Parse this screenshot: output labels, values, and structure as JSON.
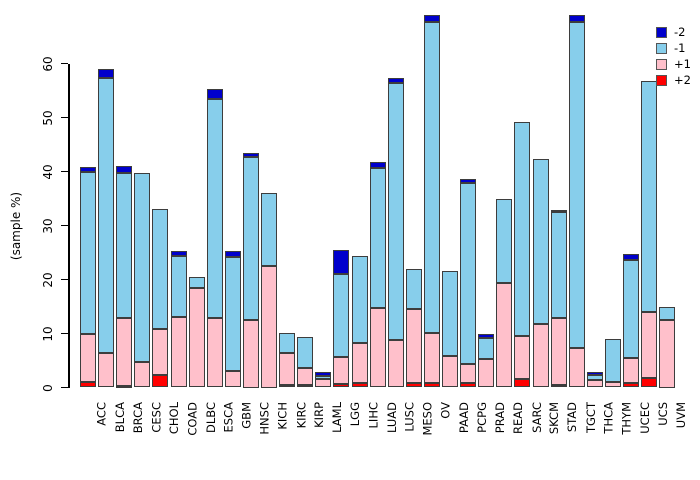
{
  "y_axis": {
    "title": "(sample %)",
    "ticks": [
      0,
      10,
      20,
      30,
      40,
      50,
      60
    ]
  },
  "legend": {
    "items": [
      {
        "label": "-2",
        "color": "#0000CC"
      },
      {
        "label": "-1",
        "color": "#87CEEB"
      },
      {
        "label": "+1",
        "color": "#FFC0CB"
      },
      {
        "label": "+2",
        "color": "#FF0000"
      }
    ]
  },
  "colors": {
    "minus2": "#0000CC",
    "minus1": "#87CEEB",
    "plus1": "#FFC0CB",
    "plus2": "#FF0000",
    "bar_border": "#3d3d3d",
    "axis": "#000000",
    "background": "#ffffff"
  },
  "chart_data": {
    "type": "bar",
    "stacked": true,
    "title": "",
    "xlabel": "",
    "ylabel": "(sample %)",
    "ylim": [
      0,
      70
    ],
    "grid": false,
    "legend_position": "top-right",
    "stack_order_bottom_to_top": [
      "+2",
      "+1",
      "-1",
      "-2"
    ],
    "categories": [
      "ACC",
      "BLCA",
      "BRCA",
      "CESC",
      "CHOL",
      "COAD",
      "DLBC",
      "ESCA",
      "GBM",
      "HNSC",
      "KICH",
      "KIRC",
      "KIRP",
      "LAML",
      "LGG",
      "LIHC",
      "LUAD",
      "LUSC",
      "MESO",
      "OV",
      "PAAD",
      "PCPG",
      "PRAD",
      "READ",
      "SARC",
      "SKCM",
      "STAD",
      "TGCT",
      "THCA",
      "THYM",
      "UCEC",
      "UCS",
      "UVM"
    ],
    "series": [
      {
        "name": "+2",
        "color": "#FF0000",
        "values": [
          1.1,
          0,
          0.3,
          0,
          2.4,
          0,
          0,
          0,
          0,
          0,
          0,
          0.5,
          0.4,
          0,
          0.6,
          0.8,
          0,
          0,
          0.8,
          0.9,
          0,
          0.9,
          0,
          0,
          1.5,
          0,
          0.5,
          0,
          0,
          0,
          0.9,
          1.8,
          0
        ]
      },
      {
        "name": "+1",
        "color": "#FFC0CB",
        "values": [
          8.8,
          6.3,
          12.6,
          4.8,
          8.4,
          13.1,
          18.5,
          12.8,
          3.1,
          12.5,
          22.5,
          5.8,
          3.3,
          1.5,
          5.0,
          7.4,
          14.7,
          8.8,
          13.7,
          9.2,
          5.8,
          3.4,
          5.3,
          19.3,
          8.0,
          11.7,
          12.4,
          7.3,
          1.4,
          1.0,
          4.6,
          12.2,
          12.5
        ]
      },
      {
        "name": "-1",
        "color": "#87CEEB",
        "values": [
          30.0,
          51.0,
          26.8,
          35.0,
          22.2,
          11.3,
          2.0,
          40.7,
          21.1,
          30.1,
          13.6,
          3.8,
          5.7,
          0.7,
          15.5,
          16.2,
          25.9,
          47.6,
          7.4,
          57.6,
          15.7,
          33.5,
          3.8,
          15.6,
          39.6,
          30.7,
          19.6,
          60.3,
          1.0,
          7.9,
          18.1,
          42.8,
          2.5
        ]
      },
      {
        "name": "-2",
        "color": "#0000CC",
        "values": [
          0.9,
          1.7,
          1.3,
          0,
          0,
          0.8,
          0,
          1.7,
          1.1,
          0.8,
          0,
          0,
          0,
          0.7,
          4.3,
          0,
          1.1,
          1.0,
          0,
          1.3,
          0,
          0.9,
          0.8,
          0,
          0,
          0,
          0.4,
          1.4,
          0.5,
          0,
          1.1,
          0,
          0
        ]
      }
    ]
  },
  "layout_note": "totals (sample %): ACC 40.8, BLCA 59.0, BRCA 41.0, CESC 39.8, CHOL 33.0, COAD 25.2, DLBC 20.5, ESCA 55.2, GBM 25.3, HNSC 43.4, KICH 36.1, KIRC 10.1, KIRP 9.4, LAML 2.9, LGG 25.4, LIHC 24.4, LUAD 41.7, LUSC 57.4, MESO 21.9, OV 69.0, PAAD 21.5, PCPG 38.7, PRAD 9.9, READ 34.9, SARC 49.1, SKCM 42.4, STAD 32.9, TGCT 69.0, THCA 2.9, THYM 8.9, UCEC 24.8, UCS 56.8, UVM 15.0"
}
